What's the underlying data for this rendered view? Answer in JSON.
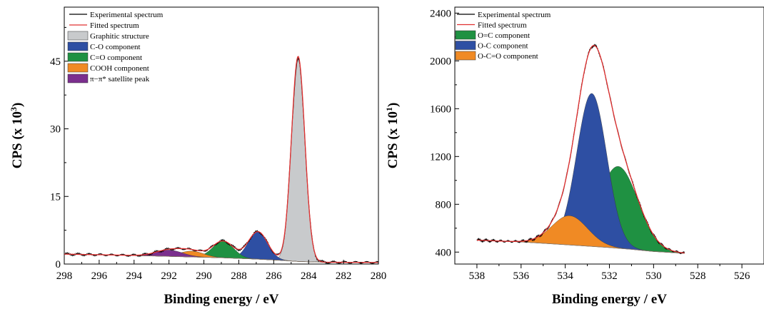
{
  "chart_data": [
    {
      "type": "area",
      "xlabel": "Binding energy / eV",
      "ylabel_main": "CPS (x 10",
      "ylabel_exp": "3",
      "ylabel_close": ")",
      "xlim": [
        298,
        280
      ],
      "ylim": [
        0,
        57
      ],
      "x_ticks": [
        "298",
        "296",
        "294",
        "292",
        "290",
        "288",
        "286",
        "284",
        "282",
        "280"
      ],
      "y_ticks": [
        "0",
        "15",
        "30",
        "45"
      ],
      "y_tick_values": [
        0,
        15,
        30,
        45
      ],
      "legend_position": "top-left",
      "background": {
        "points": [
          [
            298,
            2.2
          ],
          [
            295,
            2.0
          ],
          [
            292,
            1.7
          ],
          [
            289,
            1.4
          ],
          [
            287,
            1.1
          ],
          [
            285.5,
            0.8
          ],
          [
            284.5,
            0.55
          ],
          [
            283,
            0.4
          ],
          [
            280,
            0.35
          ]
        ]
      },
      "series": [
        {
          "name": "Experimental spectrum",
          "kind": "line",
          "color": "#000000"
        },
        {
          "name": "Fitted spectrum",
          "kind": "line",
          "color": "#e03030"
        },
        {
          "name": "Graphitic structure",
          "kind": "peak",
          "color": "#c8cacc",
          "center": 284.6,
          "height": 45.5,
          "fwhm": 0.9
        },
        {
          "name": "C-O component",
          "kind": "peak",
          "color": "#2e4fa3",
          "center": 286.9,
          "height": 6.1,
          "fwhm": 1.3
        },
        {
          "name": "C=O component",
          "kind": "peak",
          "color": "#1f9142",
          "center": 288.9,
          "height": 3.7,
          "fwhm": 1.4
        },
        {
          "name": "COOH component",
          "kind": "peak",
          "color": "#f08a24",
          "center": 290.7,
          "height": 1.3,
          "fwhm": 1.6
        },
        {
          "name": "π−π* satellite peak",
          "kind": "peak",
          "color": "#7b2f8e",
          "center": 292.0,
          "height": 1.4,
          "fwhm": 1.8
        }
      ]
    },
    {
      "type": "area",
      "xlabel": "Binding energy / eV",
      "ylabel_main": "CPS (x 10",
      "ylabel_exp": "1",
      "ylabel_close": ")",
      "xlim": [
        539,
        525
      ],
      "ylim": [
        300,
        2450
      ],
      "x_ticks": [
        "538",
        "536",
        "534",
        "532",
        "530",
        "528",
        "526"
      ],
      "x_tick_values": [
        538,
        536,
        534,
        532,
        530,
        528,
        526
      ],
      "y_ticks": [
        "400",
        "800",
        "1200",
        "1600",
        "2000",
        "2400"
      ],
      "y_tick_values": [
        400,
        800,
        1200,
        1600,
        2000,
        2400
      ],
      "legend_position": "top-left",
      "data_range": [
        538,
        528.6
      ],
      "background": {
        "points": [
          [
            538,
            500
          ],
          [
            536,
            485
          ],
          [
            534,
            462
          ],
          [
            533,
            450
          ],
          [
            532,
            438
          ],
          [
            531,
            423
          ],
          [
            530,
            405
          ],
          [
            528.6,
            390
          ]
        ]
      },
      "series": [
        {
          "name": "Experimental spectrum",
          "kind": "line",
          "color": "#000000"
        },
        {
          "name": "Fitted spectrum",
          "kind": "line",
          "color": "#e03030"
        },
        {
          "name": "O=C component",
          "kind": "peak",
          "color": "#1f9142",
          "center": 531.6,
          "height": 685,
          "fwhm": 2.1
        },
        {
          "name": "O-C component",
          "kind": "peak",
          "color": "#2e4fa3",
          "center": 532.8,
          "height": 1280,
          "fwhm": 1.6
        },
        {
          "name": "O-C=O component",
          "kind": "peak",
          "color": "#f08a24",
          "center": 533.8,
          "height": 245,
          "fwhm": 1.9
        }
      ]
    }
  ]
}
